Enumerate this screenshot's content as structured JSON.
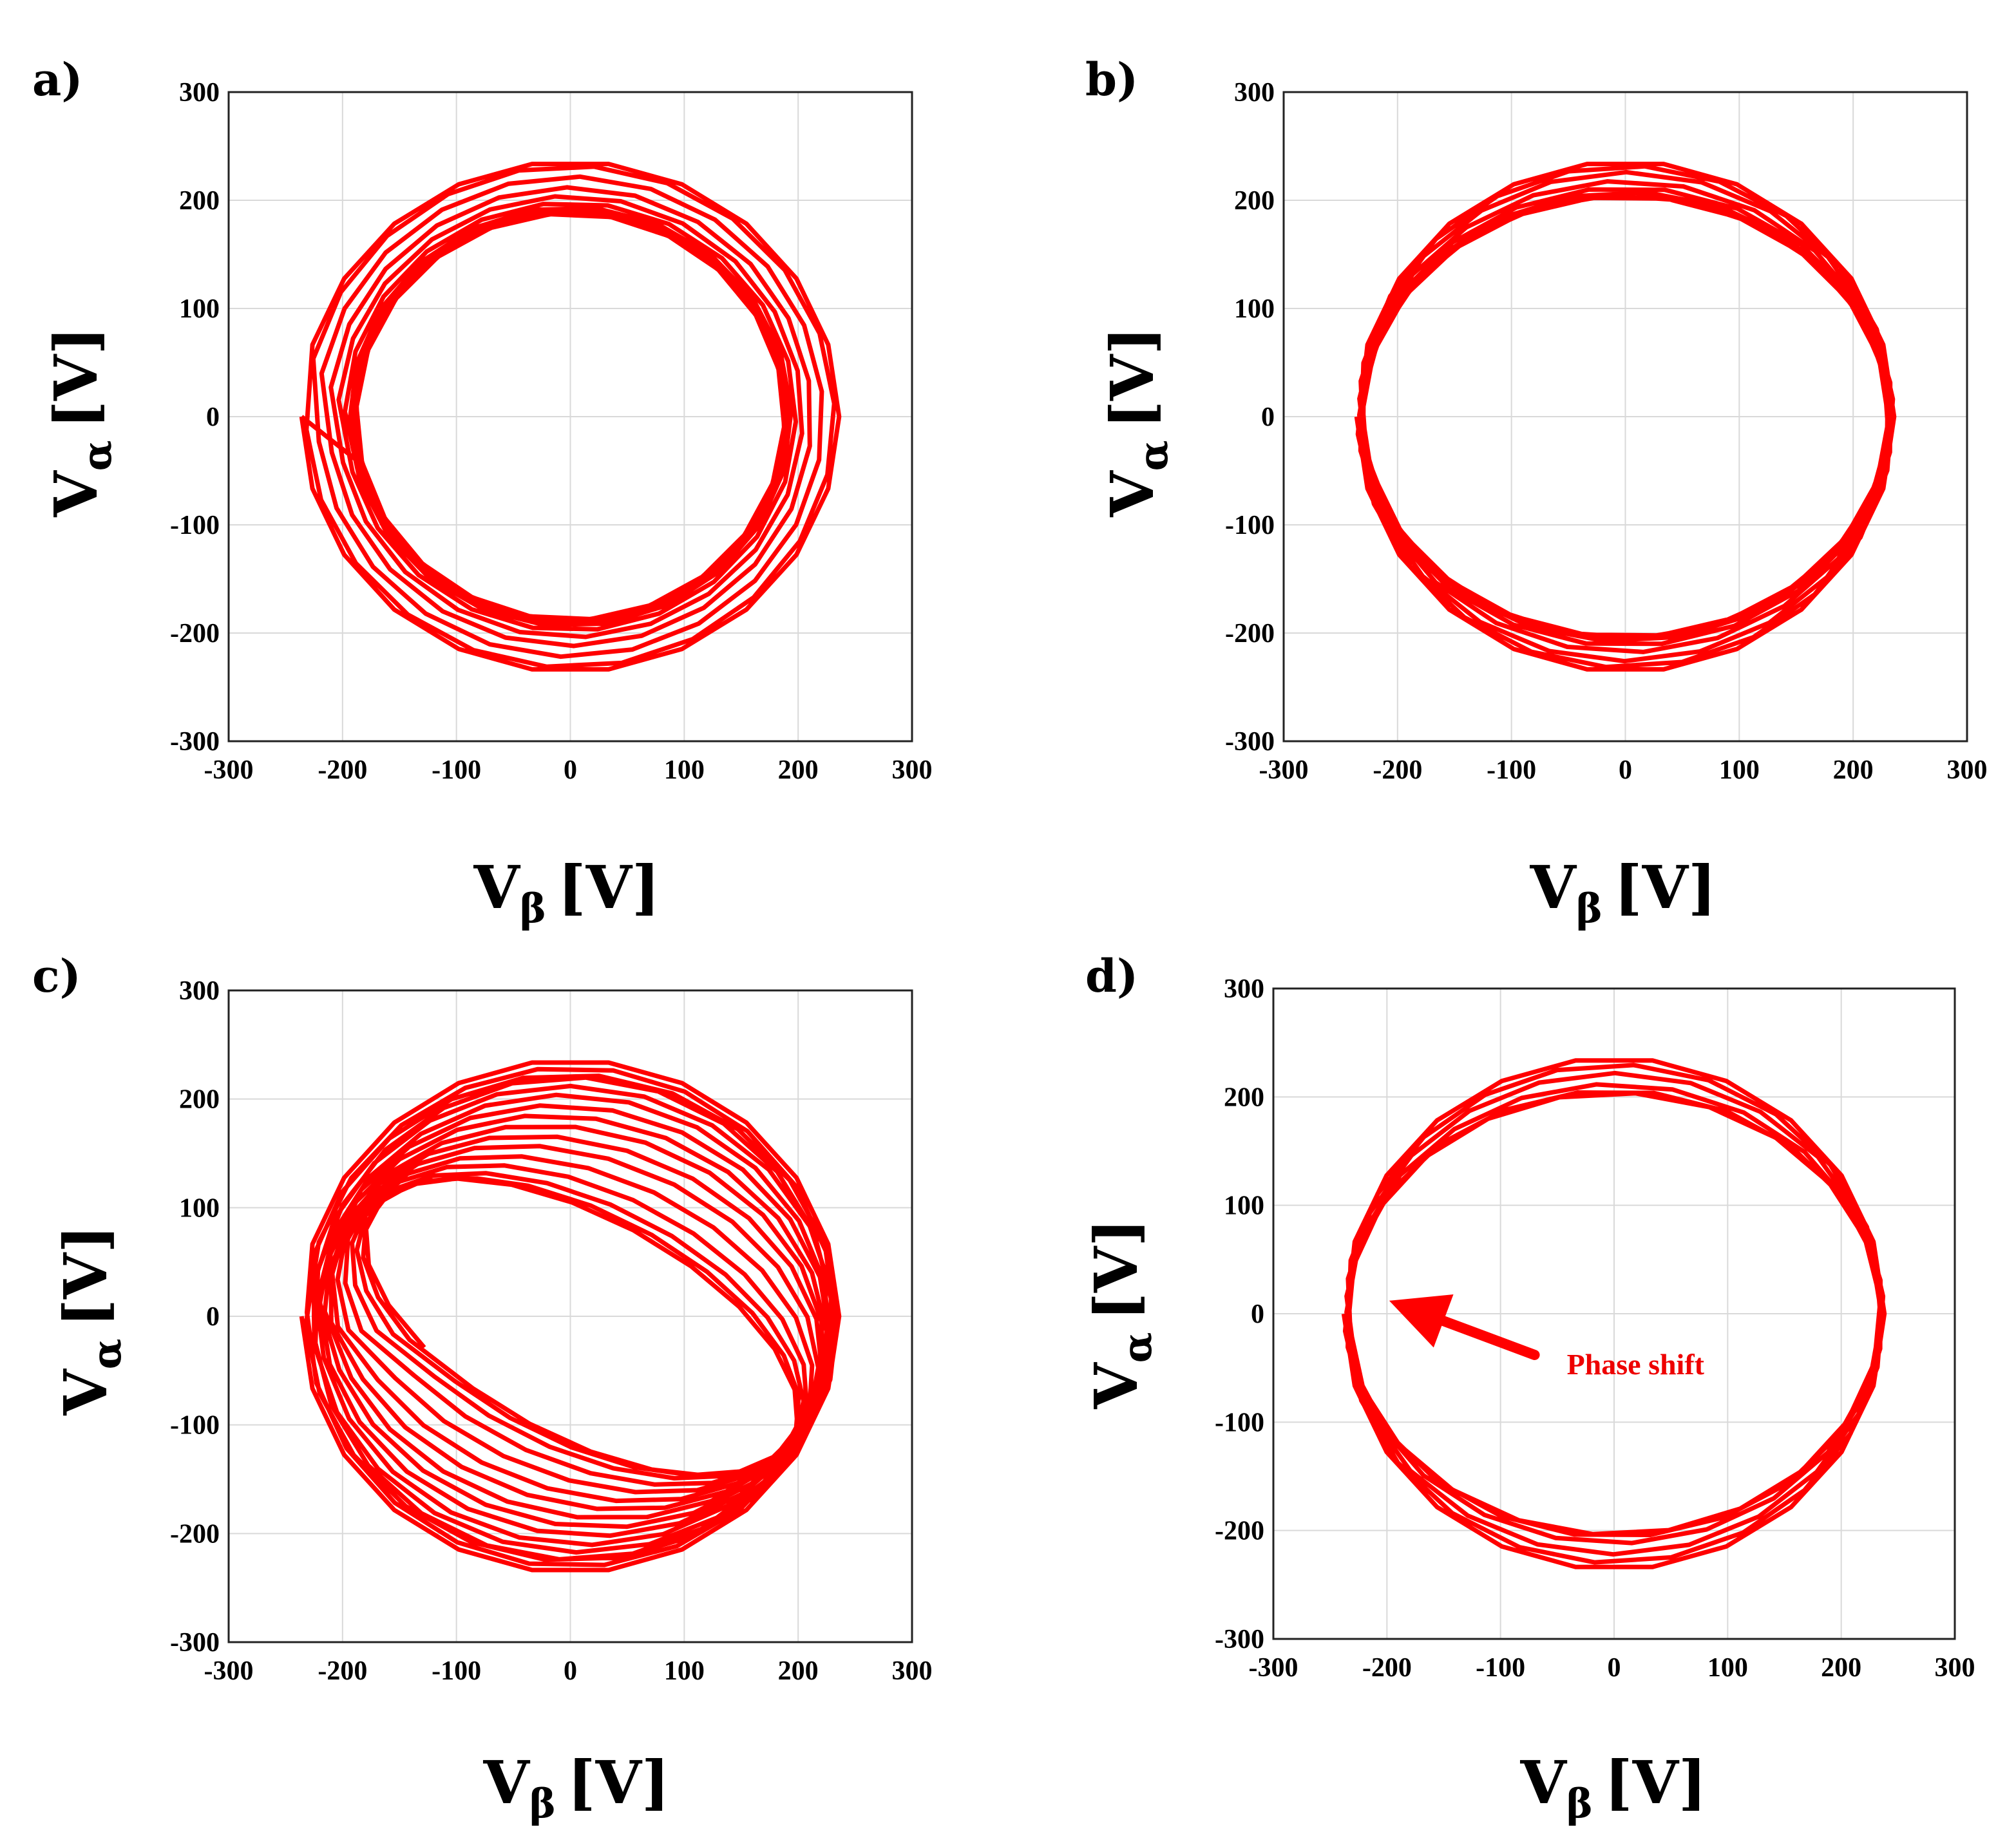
{
  "chart_data": [
    {
      "panel": "a)",
      "type": "line",
      "xlabel": {
        "main": "V",
        "sub": "β",
        "unit": "[V]"
      },
      "ylabel": {
        "main": "V",
        "sub": "α",
        "unit": "[V]"
      },
      "xlim": [
        -300,
        300
      ],
      "ylim": [
        -300,
        300
      ],
      "xticks": [
        -300,
        -200,
        -100,
        0,
        100,
        200,
        300
      ],
      "yticks": [
        -300,
        -200,
        -100,
        0,
        100,
        200,
        300
      ],
      "grid": true,
      "color": "#ff0000",
      "series": [
        {
          "name": "loop",
          "shape": "circle",
          "radii": [
            236,
            232,
            222,
            212,
            204,
            198,
            194,
            192,
            190,
            189,
            188
          ],
          "phase_deg": 0,
          "segments": 22
        }
      ],
      "annotations": []
    },
    {
      "panel": "b)",
      "type": "line",
      "xlabel": {
        "main": "V",
        "sub": "β",
        "unit": "[V]"
      },
      "ylabel": {
        "main": "V",
        "sub": "α",
        "unit": "[V]"
      },
      "xlim": [
        -300,
        300
      ],
      "ylim": [
        -300,
        300
      ],
      "xticks": [
        -300,
        -200,
        -100,
        0,
        100,
        200,
        300
      ],
      "yticks": [
        -300,
        -200,
        -100,
        0,
        100,
        200,
        300
      ],
      "grid": true,
      "color": "#ff0000",
      "series": [
        {
          "name": "loop",
          "shape": "ellipse",
          "rx": 236,
          "ry": [
            236,
            232,
            226,
            218,
            212,
            208,
            206,
            205,
            204
          ],
          "phase_deg": 0,
          "segments": 22
        }
      ],
      "annotations": []
    },
    {
      "panel": "c)",
      "type": "line",
      "xlabel": {
        "main": "V",
        "sub": "β",
        "unit": "[V]"
      },
      "ylabel": {
        "main": "V",
        "sub": "α",
        "unit": "[V]"
      },
      "xlim": [
        -300,
        300
      ],
      "ylim": [
        -300,
        300
      ],
      "xticks": [
        -300,
        -200,
        -100,
        0,
        100,
        200,
        300
      ],
      "yticks": [
        -300,
        -200,
        -100,
        0,
        100,
        200,
        300
      ],
      "grid": true,
      "color": "#ff0000",
      "series": [
        {
          "name": "loop",
          "shape": "ellipse-sequence",
          "ellipses": [
            {
              "rx": 236,
              "ry": 236,
              "tilt": 0
            },
            {
              "rx": 232,
              "ry": 230,
              "tilt": -6
            },
            {
              "rx": 234,
              "ry": 224,
              "tilt": -8
            },
            {
              "rx": 228,
              "ry": 222,
              "tilt": -10
            },
            {
              "rx": 230,
              "ry": 214,
              "tilt": -12
            },
            {
              "rx": 226,
              "ry": 206,
              "tilt": -14
            },
            {
              "rx": 226,
              "ry": 196,
              "tilt": -16
            },
            {
              "rx": 224,
              "ry": 186,
              "tilt": -18
            },
            {
              "rx": 222,
              "ry": 176,
              "tilt": -19
            },
            {
              "rx": 222,
              "ry": 164,
              "tilt": -21
            },
            {
              "rx": 220,
              "ry": 152,
              "tilt": -23
            },
            {
              "rx": 218,
              "ry": 138,
              "tilt": -25
            },
            {
              "rx": 216,
              "ry": 124,
              "tilt": -27
            },
            {
              "rx": 214,
              "ry": 112,
              "tilt": -28
            },
            {
              "rx": 212,
              "ry": 104,
              "tilt": -29
            },
            {
              "rx": 212,
              "ry": 100,
              "tilt": -30
            }
          ],
          "center_shift": [
            10,
            -10
          ],
          "segments": 22
        }
      ],
      "annotations": []
    },
    {
      "panel": "d)",
      "type": "line",
      "xlabel": {
        "main": "V",
        "sub": "β",
        "unit": "[V]"
      },
      "ylabel": {
        "main": "V",
        "sub": "α",
        "unit": "[V]"
      },
      "xlim": [
        -300,
        300
      ],
      "ylim": [
        -300,
        300
      ],
      "xticks": [
        -300,
        -200,
        -100,
        0,
        100,
        200,
        300
      ],
      "yticks": [
        -300,
        -200,
        -100,
        0,
        100,
        200,
        300
      ],
      "grid": true,
      "color": "#ff0000",
      "series": [
        {
          "name": "loop",
          "shape": "ellipse",
          "rx": 238,
          "ry": [
            236,
            230,
            222,
            212,
            206,
            204
          ],
          "phase_deg": 0,
          "segments": 22,
          "phase_jump": {
            "at_x": -220,
            "at_y": 0,
            "ry_after": 204
          }
        }
      ],
      "annotations": [
        {
          "text": "Phase shift",
          "arrow_from": [
            -70,
            -38
          ],
          "arrow_to": [
            -198,
            12
          ]
        }
      ]
    }
  ]
}
